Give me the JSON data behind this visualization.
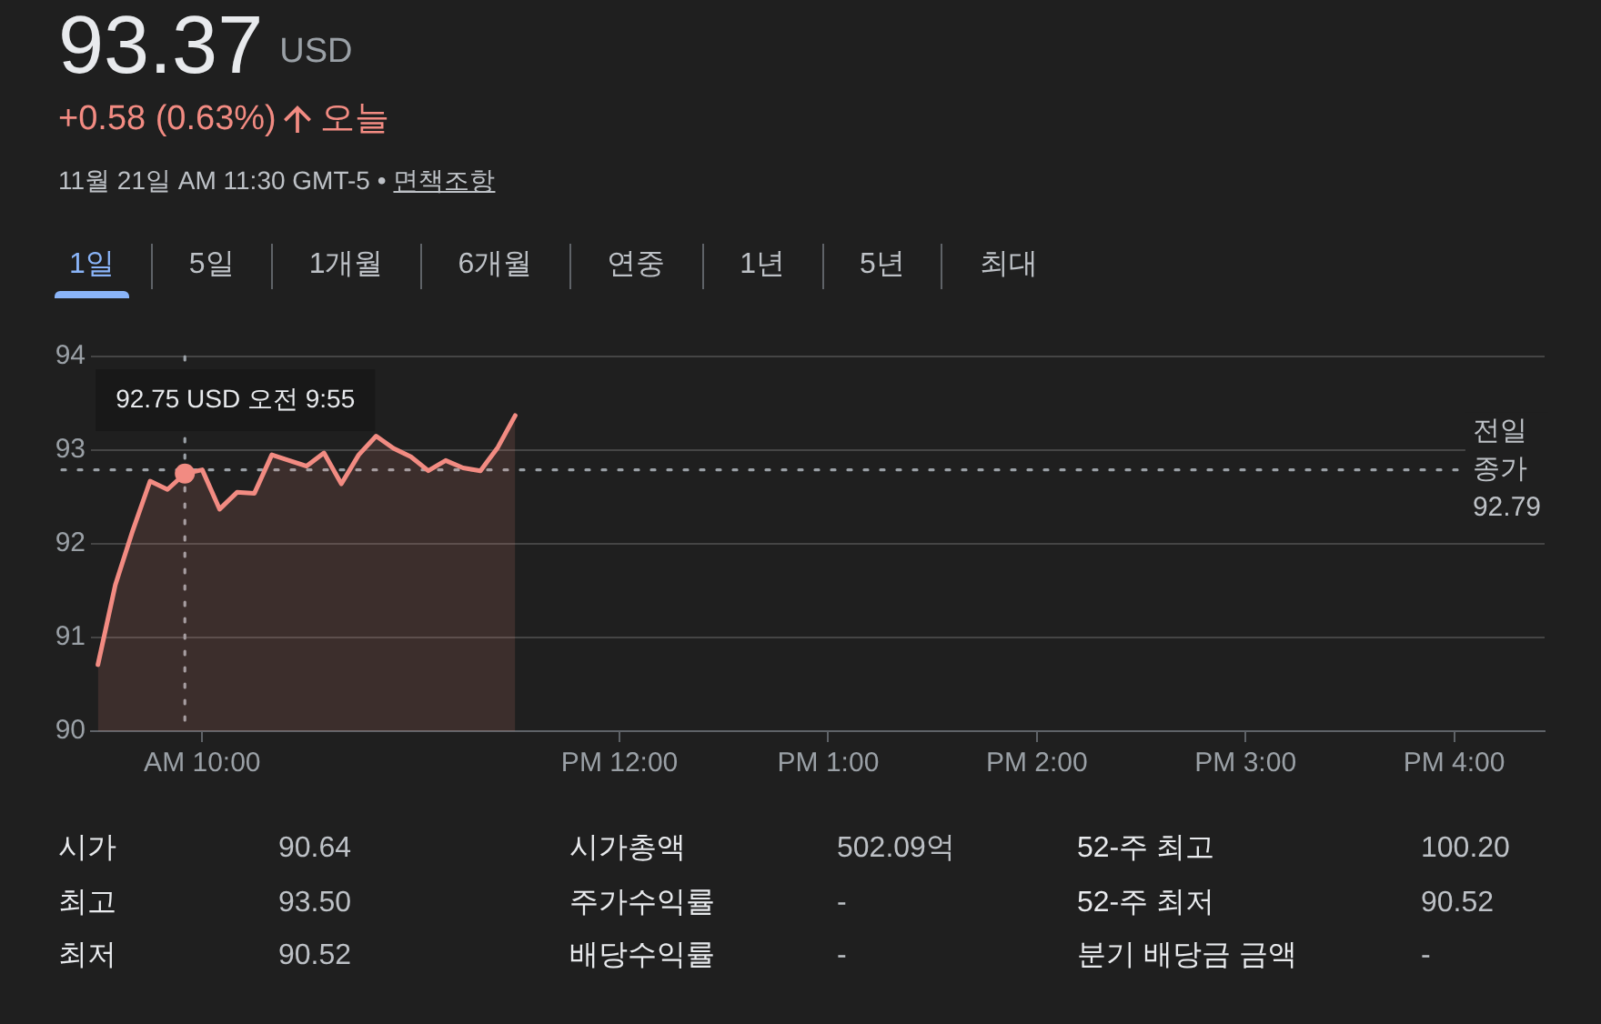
{
  "chart_data": {
    "type": "area",
    "title": "93.37",
    "subtitle": "+0.58 (0.63%)",
    "x": [
      "--11-21T09:30",
      "--11-21T09:35",
      "--11-21T09:40",
      "--11-21T09:45",
      "--11-21T09:50",
      "--11-21T09:55",
      "--11-21T10:00",
      "--11-21T10:05",
      "--11-21T10:10",
      "--11-21T10:15",
      "--11-21T10:20",
      "--11-21T10:25",
      "--11-21T10:30",
      "--11-21T10:35",
      "--11-21T10:40",
      "--11-21T10:45",
      "--11-21T10:50",
      "--11-21T10:55",
      "--11-21T11:00",
      "--11-21T11:05",
      "--11-21T11:10",
      "--11-21T11:15",
      "--11-21T11:20",
      "--11-21T11:25",
      "--11-21T11:30"
    ],
    "series": [
      {
        "color": "#f28b82",
        "values": [
          90.71,
          91.56,
          92.14,
          92.67,
          92.58,
          92.75,
          92.79,
          92.37,
          92.55,
          92.54,
          92.95,
          92.89,
          92.83,
          92.97,
          92.64,
          92.95,
          93.15,
          93.02,
          92.93,
          92.78,
          92.89,
          92.81,
          92.78,
          93.03,
          93.37
        ]
      }
    ],
    "xlim": [
      "--11-21T09:28",
      "--11-21T16:26"
    ],
    "xticks": [
      {
        "value": "--11-21T10:00",
        "label": "AM 10:00"
      },
      {
        "value": "--11-21T12:00",
        "label": "PM 12:00"
      },
      {
        "value": "--11-21T13:00",
        "label": "PM 1:00"
      },
      {
        "value": "--11-21T14:00",
        "label": "PM 2:00"
      },
      {
        "value": "--11-21T15:00",
        "label": "PM 3:00"
      },
      {
        "value": "--11-21T16:00",
        "label": "PM 4:00"
      }
    ],
    "ylim": [
      90,
      94
    ],
    "yticks": [
      90,
      91,
      92,
      93,
      94
    ],
    "grid": "y",
    "ref_lines": [
      {
        "axis": "y",
        "value": 92.79,
        "label": "전일 종가 92.79",
        "line_style": "dotted"
      },
      {
        "axis": "x",
        "value": "--11-21T09:55",
        "line_style": "dotted"
      }
    ],
    "annotations": [
      "USD",
      "오늘",
      "11월 21일 AM 11:30 GMT-5 •",
      "면책조항",
      "1일",
      "5일",
      "1개월",
      "6개월",
      "연중",
      "1년",
      "5년",
      "최대",
      "시가",
      "90.64",
      "시가총액",
      "502.09억",
      "52-주 최고",
      "100.20",
      "최고",
      "93.50",
      "주가수익률",
      "-",
      "52-주 최저",
      "90.52",
      "최저",
      "90.52",
      "배당수익률",
      "-",
      "분기 배당금 금액",
      "-",
      {
        "text": "92.75 USD 오전 9:55",
        "x": "--11-21T09:55",
        "y": 92.75
      }
    ]
  }
}
